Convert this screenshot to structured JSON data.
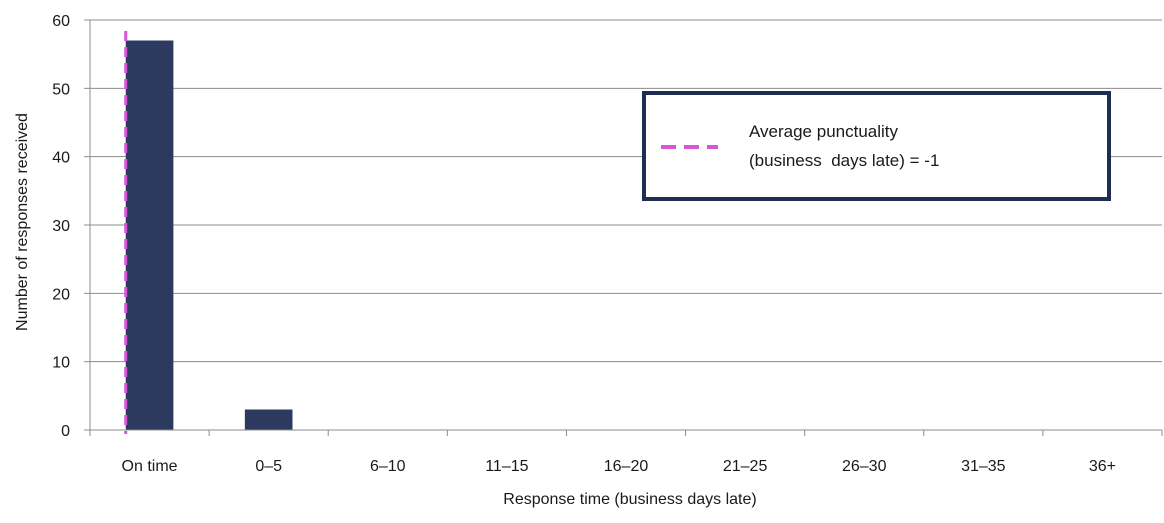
{
  "chart_data": {
    "type": "bar",
    "categories": [
      "On time",
      "0–5",
      "6–10",
      "11–15",
      "16–20",
      "21–25",
      "26–30",
      "31–35",
      "36+"
    ],
    "values": [
      57,
      3,
      0,
      0,
      0,
      0,
      0,
      0,
      0
    ],
    "xlabel": "Response time (business days late)",
    "ylabel": "Number  of responses received",
    "ylim": [
      0,
      60
    ],
    "yticks": [
      0,
      10,
      20,
      30,
      40,
      50,
      60
    ],
    "grid": true,
    "bar_color": "#2b3a5e",
    "reference_line": {
      "type": "vertical-dashed",
      "color": "#d855d8",
      "x_value": -1,
      "label": "Average punctuality (business  days late) = -1"
    },
    "legend": {
      "placement": "top-right",
      "line1": "Average punctuality",
      "line2": "(business  days late) = -1",
      "border_color": "#1f2d55"
    }
  }
}
